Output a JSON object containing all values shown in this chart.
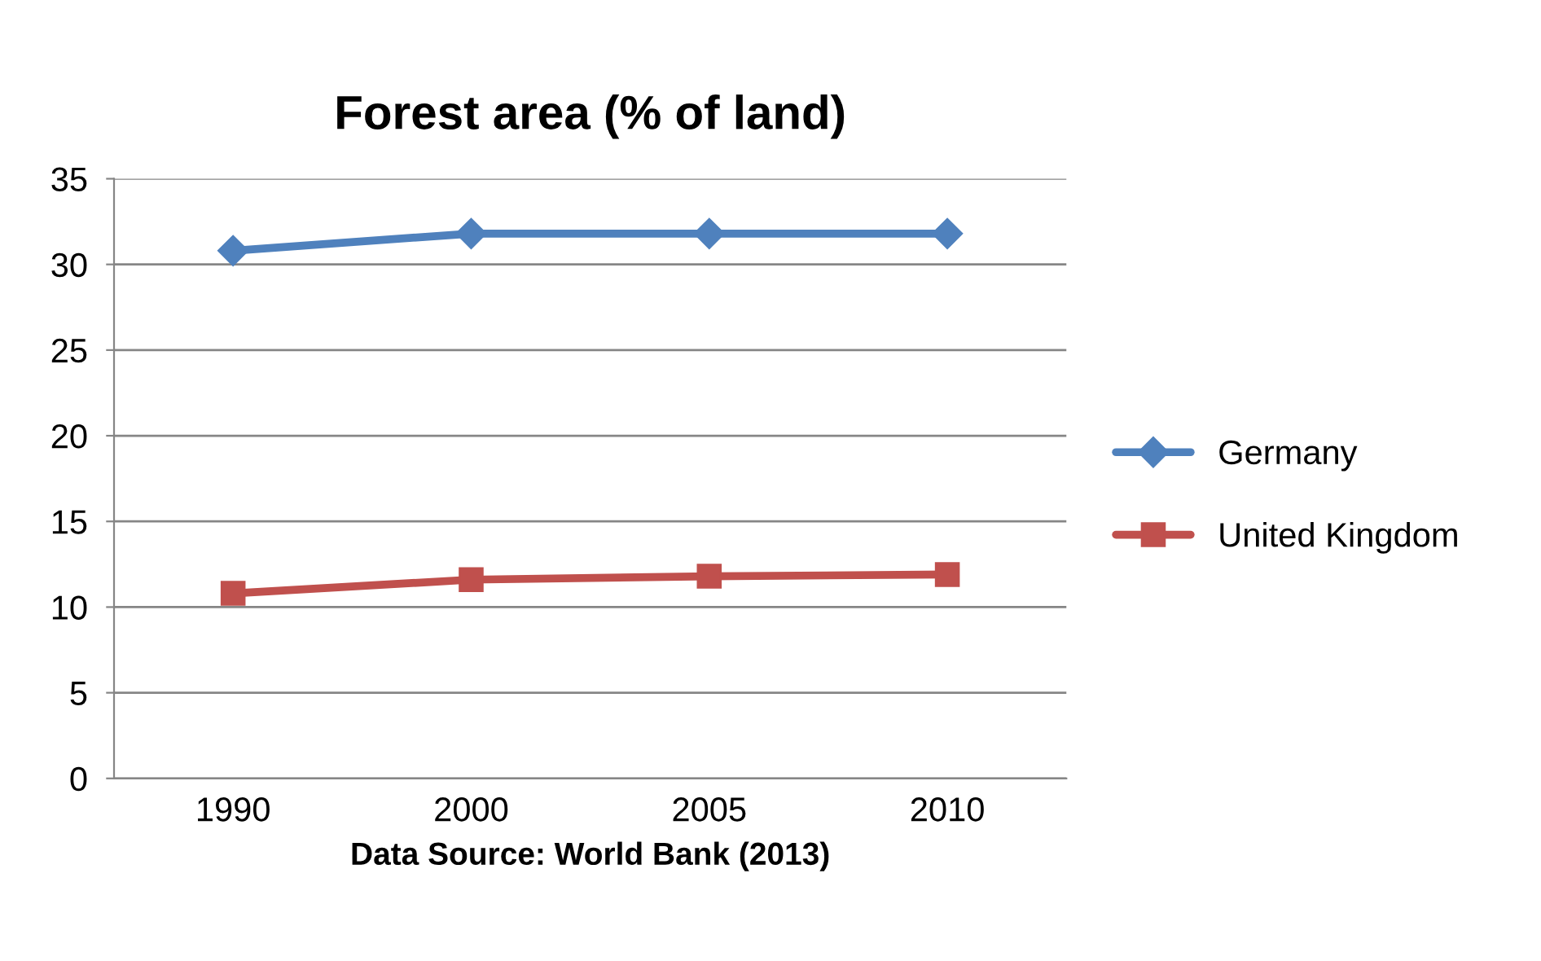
{
  "chart_data": {
    "type": "line",
    "title": "Forest area (% of land)",
    "xlabel": "Data Source: World Bank (2013)",
    "categories": [
      "1990",
      "2000",
      "2005",
      "2010"
    ],
    "series": [
      {
        "name": "Germany",
        "color": "#4f81bd",
        "values": [
          30.8,
          31.8,
          31.8,
          31.8
        ],
        "marker": "diamond"
      },
      {
        "name": "United Kingdom",
        "color": "#c0504d",
        "values": [
          10.8,
          11.6,
          11.8,
          11.9
        ],
        "marker": "square"
      }
    ],
    "ylim": [
      0,
      35
    ],
    "yticks": [
      0,
      5,
      10,
      15,
      20,
      25,
      30,
      35
    ],
    "grid": "y",
    "legend": "right",
    "line_style": "solid"
  }
}
